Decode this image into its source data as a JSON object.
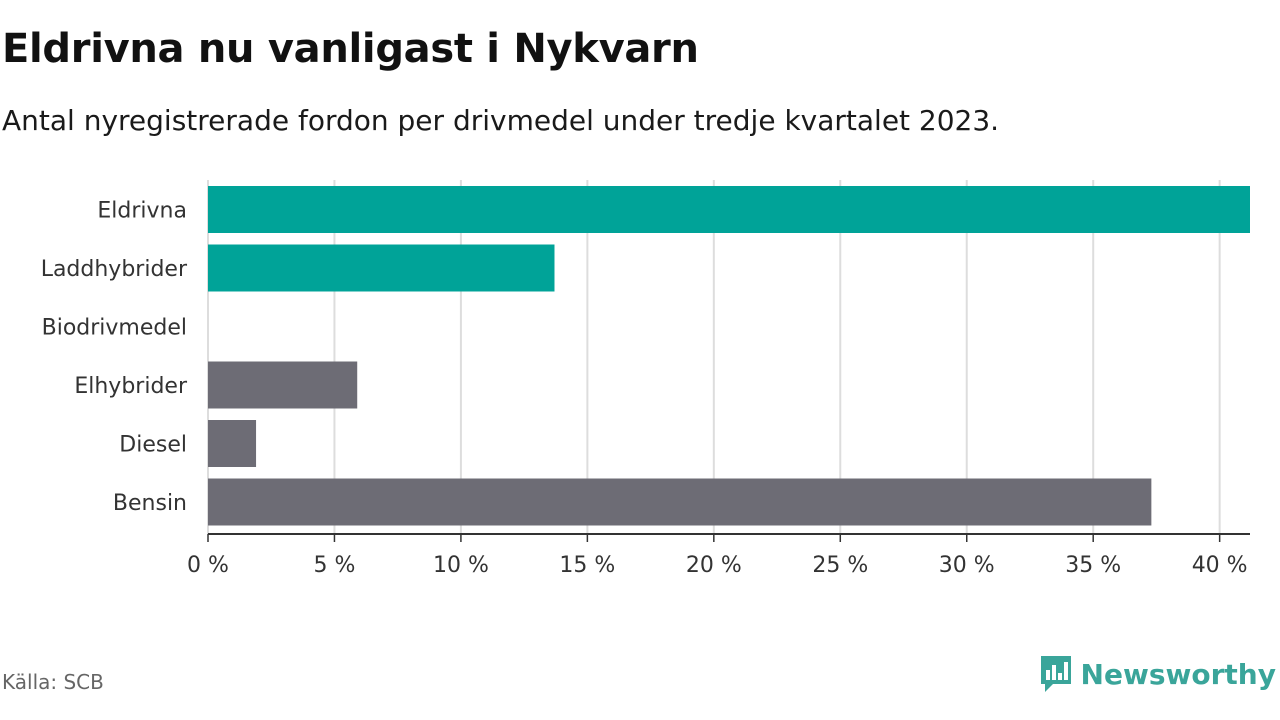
{
  "header": {
    "title": "Eldrivna nu vanligast i Nykvarn",
    "subtitle": "Antal nyregistrerade fordon per drivmedel under tredje kvartalet 2023."
  },
  "footer": {
    "source": "Källa: SCB",
    "brand": "Newsworthy",
    "brand_icon": "newsworthy-logo-icon",
    "brand_color": "#3aa59a"
  },
  "chart_data": {
    "type": "bar",
    "orientation": "horizontal",
    "categories": [
      "Eldrivna",
      "Laddhybrider",
      "Biodrivmedel",
      "Elhybrider",
      "Diesel",
      "Bensin"
    ],
    "values": [
      41.2,
      13.7,
      0,
      5.9,
      1.9,
      37.3
    ],
    "colors": [
      "#00a398",
      "#00a398",
      "#00a398",
      "#6d6c75",
      "#6d6c75",
      "#6d6c75"
    ],
    "xlim": [
      0,
      41.2
    ],
    "xticks": [
      0,
      5,
      10,
      15,
      20,
      25,
      30,
      35,
      40
    ],
    "xtick_labels": [
      "0 %",
      "5 %",
      "10 %",
      "15 %",
      "20 %",
      "25 %",
      "30 %",
      "35 %",
      "40 %"
    ],
    "grid": true,
    "gridColor": "#dddddd"
  }
}
